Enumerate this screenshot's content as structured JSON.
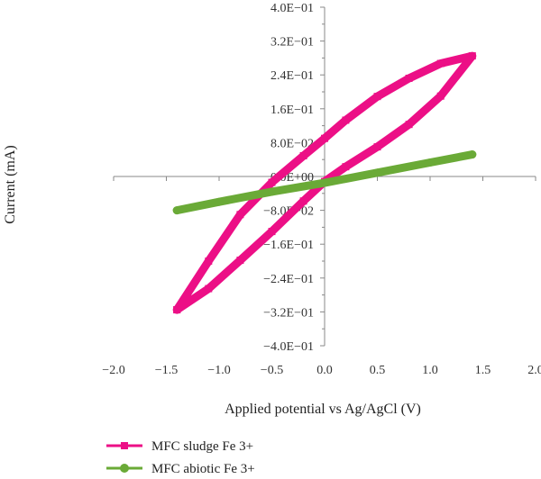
{
  "chart_data": {
    "type": "line",
    "xlabel": "Applied potential vs Ag/AgCl (V)",
    "ylabel": "Current (mA)",
    "xlim": [
      -2.0,
      2.0
    ],
    "ylim": [
      -0.4,
      0.4
    ],
    "x_ticks": [
      "−2.0",
      "−1.5",
      "−1.0",
      "−0.5",
      "0.0",
      "0.5",
      "1.0",
      "1.5",
      "2.0"
    ],
    "y_ticks": [
      "4.0E−01",
      "3.2E−01",
      "2.4E−01",
      "1.6E−01",
      "8.0E−02",
      "0.0E+00",
      "−8.0E−02",
      "−1.6E−01",
      "−2.4E−01",
      "−3.2E−01",
      "−4.0E−01"
    ],
    "x_tick_values": [
      -2.0,
      -1.5,
      -1.0,
      -0.5,
      0.0,
      0.5,
      1.0,
      1.5,
      2.0
    ],
    "y_tick_values": [
      0.4,
      0.32,
      0.24,
      0.16,
      0.08,
      0.0,
      -0.08,
      -0.16,
      -0.24,
      -0.32,
      -0.4
    ],
    "legend_position": "bottom-left",
    "series": [
      {
        "name": "MFC sludge Fe 3+",
        "color": "#ec0f86",
        "marker": "square",
        "x": [
          -1.4,
          -1.1,
          -0.8,
          -0.5,
          -0.2,
          0.0,
          0.2,
          0.5,
          0.8,
          1.1,
          1.4,
          1.1,
          0.8,
          0.5,
          0.2,
          0.0,
          -0.2,
          -0.5,
          -0.8,
          -1.1,
          -1.4
        ],
        "y": [
          -0.315,
          -0.265,
          -0.198,
          -0.13,
          -0.058,
          -0.012,
          0.023,
          0.07,
          0.123,
          0.19,
          0.285,
          0.267,
          0.232,
          0.189,
          0.133,
          0.09,
          0.049,
          -0.014,
          -0.09,
          -0.2,
          -0.315
        ]
      },
      {
        "name": "MFC abiotic Fe 3+",
        "color": "#6aaa37",
        "marker": "circle",
        "x": [
          -1.4,
          -1.0,
          -0.5,
          0.0,
          0.5,
          1.0,
          1.4
        ],
        "y": [
          -0.08,
          -0.06,
          -0.036,
          -0.015,
          0.009,
          0.033,
          0.052
        ]
      }
    ]
  }
}
